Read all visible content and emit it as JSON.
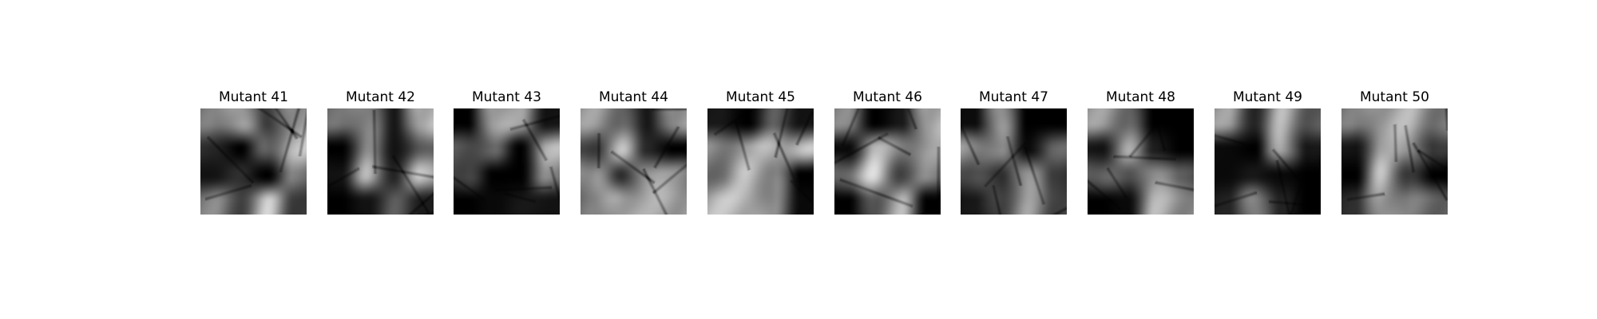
{
  "figure": {
    "panels": [
      {
        "title": "Mutant 41",
        "mask": [
          [
            0.55,
            0.85,
            0.25,
            0.75
          ],
          [
            0.2,
            0.0,
            0.5,
            0.85
          ],
          [
            0.1,
            0.2,
            0.0,
            0.55
          ],
          [
            0.6,
            0.35,
            0.9,
            0.3
          ]
        ],
        "seed": 41
      },
      {
        "title": "Mutant 42",
        "mask": [
          [
            0.5,
            0.7,
            0.1,
            0.9
          ],
          [
            0.0,
            0.6,
            0.1,
            0.4
          ],
          [
            0.1,
            0.8,
            0.2,
            0.85
          ],
          [
            0.0,
            0.1,
            0.4,
            0.15
          ]
        ],
        "seed": 42
      },
      {
        "title": "Mutant 43",
        "mask": [
          [
            0.0,
            0.85,
            0.7,
            0.1
          ],
          [
            0.4,
            0.45,
            0.0,
            0.8
          ],
          [
            0.35,
            0.0,
            0.0,
            0.6
          ],
          [
            0.0,
            0.05,
            0.1,
            0.1
          ]
        ],
        "seed": 43
      },
      {
        "title": "Mutant 44",
        "mask": [
          [
            0.7,
            0.55,
            0.1,
            0.75
          ],
          [
            0.3,
            0.85,
            0.2,
            0.0
          ],
          [
            0.75,
            0.2,
            0.8,
            0.65
          ],
          [
            0.55,
            0.85,
            0.75,
            0.8
          ]
        ],
        "seed": 44
      },
      {
        "title": "Mutant 45",
        "mask": [
          [
            0.1,
            0.0,
            0.4,
            0.1
          ],
          [
            0.65,
            0.7,
            0.9,
            0.85
          ],
          [
            0.55,
            0.85,
            0.7,
            0.0
          ],
          [
            0.85,
            0.9,
            0.6,
            0.05
          ]
        ],
        "seed": 45
      },
      {
        "title": "Mutant 46",
        "mask": [
          [
            0.6,
            0.0,
            0.1,
            0.85
          ],
          [
            0.05,
            0.8,
            0.65,
            0.7
          ],
          [
            0.55,
            0.95,
            0.35,
            0.6
          ],
          [
            0.0,
            0.45,
            0.8,
            0.0
          ]
        ],
        "seed": 46
      },
      {
        "title": "Mutant 47",
        "mask": [
          [
            0.05,
            0.8,
            0.0,
            0.0
          ],
          [
            0.7,
            0.6,
            0.05,
            0.45
          ],
          [
            0.4,
            0.2,
            0.8,
            0.25
          ],
          [
            0.1,
            0.35,
            0.7,
            0.35
          ]
        ],
        "seed": 47
      },
      {
        "title": "Mutant 48",
        "mask": [
          [
            0.7,
            0.55,
            0.0,
            0.0
          ],
          [
            0.1,
            0.75,
            0.15,
            0.0
          ],
          [
            0.5,
            0.35,
            0.75,
            0.4
          ],
          [
            0.0,
            0.05,
            0.8,
            0.7
          ]
        ],
        "seed": 48
      },
      {
        "title": "Mutant 49",
        "mask": [
          [
            0.7,
            0.2,
            0.8,
            0.45
          ],
          [
            0.05,
            0.0,
            0.85,
            0.1
          ],
          [
            0.05,
            0.1,
            0.05,
            0.0
          ],
          [
            0.15,
            0.7,
            0.15,
            0.0
          ]
        ],
        "seed": 49
      },
      {
        "title": "Mutant 50",
        "mask": [
          [
            0.55,
            0.8,
            0.8,
            0.6
          ],
          [
            0.1,
            0.7,
            0.75,
            0.25
          ],
          [
            0.0,
            0.85,
            0.3,
            0.0
          ],
          [
            0.2,
            0.8,
            0.55,
            0.5
          ]
        ],
        "seed": 50
      }
    ]
  }
}
